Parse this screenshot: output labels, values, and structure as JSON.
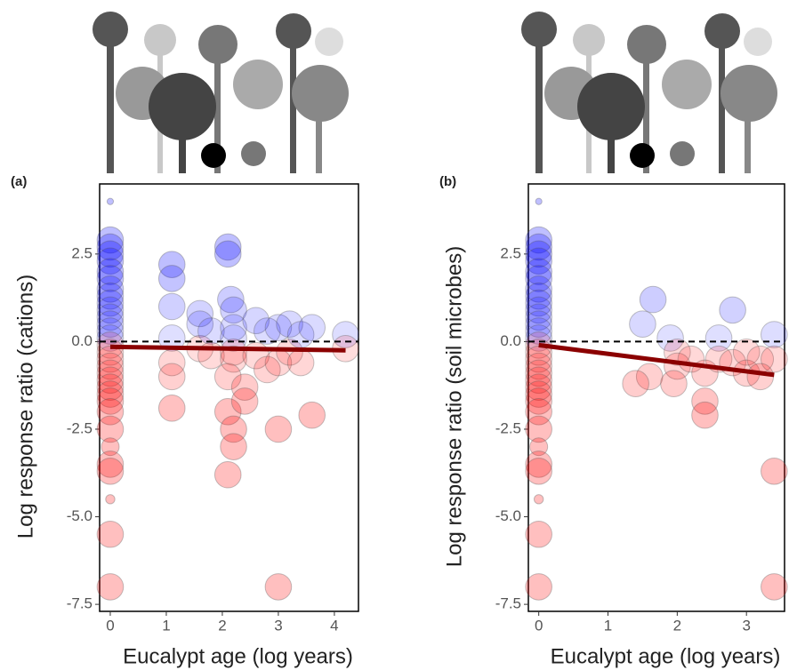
{
  "chart_data": [
    {
      "type": "scatter",
      "panel_label": "(a)",
      "ylabel": "Log response ratio (cations)",
      "xlabel": "Eucalypt age (log years)",
      "xlim": [
        -0.19,
        4.43
      ],
      "ylim": [
        -7.7,
        4.5
      ],
      "xticks": [
        0,
        1,
        2,
        3,
        4
      ],
      "yticks": [
        {
          "value": 2.5,
          "label": "2.5"
        },
        {
          "value": 0,
          "label": "0.0"
        },
        {
          "value": -2.5,
          "label": "-2.5"
        },
        {
          "value": -5,
          "label": "-5.0"
        },
        {
          "value": -7.5,
          "label": "-7.5"
        }
      ],
      "positive_color": "#0000ff",
      "negative_color": "#ff0000",
      "trend_color": "#8b0000",
      "hline": 0,
      "trend": {
        "x": [
          0,
          4.2
        ],
        "y": [
          -0.15,
          -0.25
        ]
      },
      "x": [
        0,
        0,
        0,
        0,
        0,
        0,
        0,
        0,
        0,
        0,
        0,
        0,
        0,
        0,
        0,
        0,
        0,
        0,
        0,
        0,
        0,
        0,
        0,
        0,
        0,
        0,
        0,
        0,
        0,
        0,
        0,
        0,
        1.1,
        1.1,
        1.1,
        1.1,
        1.1,
        1.1,
        1.1,
        1.6,
        1.6,
        1.6,
        1.8,
        1.8,
        2.1,
        2.1,
        2.15,
        2.2,
        2.2,
        2.2,
        2.2,
        2.2,
        2.1,
        2.1,
        2.2,
        2.2,
        2.1,
        2.4,
        2.4,
        2.6,
        2.6,
        2.8,
        2.8,
        3.0,
        3.0,
        3.0,
        3.0,
        3.2,
        3.2,
        3.4,
        3.4,
        3.6,
        3.6,
        4.2,
        4.2
      ],
      "y": [
        4.0,
        2.9,
        2.7,
        2.5,
        2.3,
        2.0,
        1.8,
        1.5,
        1.3,
        1.1,
        0.9,
        0.7,
        0.5,
        0.3,
        0.1,
        -0.1,
        -0.3,
        -0.5,
        -0.7,
        -0.9,
        -1.1,
        -1.3,
        -1.5,
        -1.7,
        -2.0,
        -2.5,
        -3.0,
        -3.5,
        -3.7,
        -4.5,
        -5.5,
        -7.0,
        2.2,
        1.8,
        1.0,
        0.1,
        -0.6,
        -1.0,
        -1.9,
        0.8,
        0.5,
        -0.2,
        0.3,
        -0.4,
        2.7,
        2.5,
        1.2,
        0.9,
        0.4,
        0.1,
        -0.3,
        -0.5,
        -1.0,
        -2.0,
        -2.5,
        -3.0,
        -3.8,
        -1.3,
        -1.7,
        0.6,
        -0.4,
        0.3,
        -0.8,
        0.4,
        -0.6,
        -2.5,
        -7.0,
        0.5,
        -0.3,
        0.2,
        -0.6,
        0.4,
        -2.1,
        0.2,
        -0.2
      ],
      "sizes": [
        1,
        8,
        8,
        8,
        8,
        8,
        8,
        8,
        8,
        8,
        8,
        8,
        8,
        8,
        8,
        8,
        8,
        8,
        8,
        8,
        8,
        8,
        8,
        8,
        8,
        8,
        5,
        8,
        8,
        2,
        8,
        8,
        8,
        8,
        8,
        8,
        8,
        8,
        8,
        8,
        8,
        8,
        8,
        8,
        8,
        8,
        8,
        8,
        8,
        8,
        8,
        8,
        8,
        8,
        8,
        8,
        8,
        8,
        8,
        8,
        8,
        8,
        8,
        8,
        8,
        8,
        8,
        8,
        8,
        8,
        8,
        8,
        8,
        8,
        8
      ]
    },
    {
      "type": "scatter",
      "panel_label": "(b)",
      "ylabel": "Log response ratio (soil microbes)",
      "xlabel": "Eucalypt age (log years)",
      "xlim": [
        -0.15,
        3.55
      ],
      "ylim": [
        -7.7,
        4.5
      ],
      "xticks": [
        0,
        1,
        2,
        3
      ],
      "yticks": [
        {
          "value": 2.5,
          "label": "2.5"
        },
        {
          "value": 0,
          "label": "0.0"
        },
        {
          "value": -2.5,
          "label": "-2.5"
        },
        {
          "value": -5,
          "label": "-5.0"
        },
        {
          "value": -7.5,
          "label": "-7.5"
        }
      ],
      "positive_color": "#0000ff",
      "negative_color": "#ff0000",
      "trend_color": "#8b0000",
      "hline": 0,
      "trend": {
        "x": [
          0,
          3.4
        ],
        "y": [
          -0.1,
          -0.95
        ]
      },
      "x": [
        0,
        0,
        0,
        0,
        0,
        0,
        0,
        0,
        0,
        0,
        0,
        0,
        0,
        0,
        0,
        0,
        0,
        0,
        0,
        0,
        0,
        0,
        0,
        0,
        0,
        0,
        0,
        0,
        0,
        0,
        0,
        0,
        1.65,
        1.5,
        1.6,
        1.4,
        1.9,
        2.0,
        2.0,
        1.95,
        2.2,
        2.4,
        2.4,
        2.4,
        2.6,
        2.6,
        2.8,
        2.8,
        3.0,
        3.0,
        3.2,
        3.4,
        3.4,
        3.4,
        3.4,
        3.2
      ],
      "y": [
        4.0,
        2.9,
        2.7,
        2.5,
        2.3,
        2.0,
        1.8,
        1.5,
        1.3,
        1.1,
        0.9,
        0.7,
        0.5,
        0.3,
        0.1,
        -0.1,
        -0.3,
        -0.5,
        -0.7,
        -0.9,
        -1.1,
        -1.3,
        -1.5,
        -1.7,
        -2.0,
        -2.5,
        -3.0,
        -3.5,
        -3.7,
        -4.5,
        -5.5,
        -7.0,
        1.2,
        0.5,
        -1.0,
        -1.2,
        0.1,
        -0.3,
        -0.7,
        -1.2,
        -0.5,
        -0.9,
        -1.7,
        -2.1,
        0.1,
        -0.5,
        0.9,
        -0.6,
        -0.3,
        -0.9,
        -0.5,
        0.2,
        -0.5,
        -3.7,
        -7.0,
        -1.0
      ],
      "sizes": [
        1,
        8,
        8,
        8,
        8,
        8,
        8,
        8,
        8,
        8,
        8,
        8,
        8,
        8,
        8,
        8,
        8,
        8,
        8,
        8,
        8,
        8,
        8,
        8,
        8,
        8,
        5,
        8,
        8,
        2,
        8,
        8,
        8,
        8,
        8,
        8,
        8,
        8,
        8,
        8,
        8,
        8,
        8,
        8,
        8,
        8,
        8,
        8,
        8,
        8,
        8,
        8,
        8,
        8,
        8,
        8
      ]
    }
  ]
}
